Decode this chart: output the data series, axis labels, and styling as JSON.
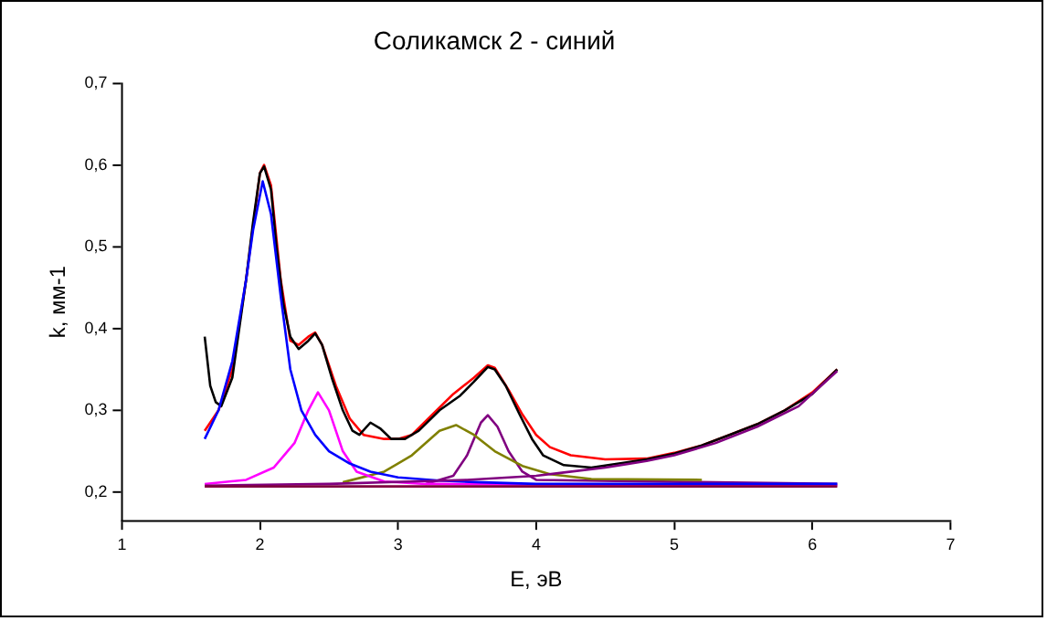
{
  "chart_data": {
    "type": "line",
    "title": "Соликамск 2 - синий",
    "xlabel": "E, эВ",
    "ylabel": "k, мм-1",
    "xlim": [
      1,
      7
    ],
    "xticks": [
      1,
      2,
      3,
      4,
      5,
      6,
      7
    ],
    "ylim": [
      0.165,
      0.7
    ],
    "yticks": [
      {
        "value": 0.2,
        "label": "0,2"
      },
      {
        "value": 0.3,
        "label": "0,3"
      },
      {
        "value": 0.4,
        "label": "0,4"
      },
      {
        "value": 0.5,
        "label": "0,5"
      },
      {
        "value": 0.6,
        "label": "0,6"
      },
      {
        "value": 0.7,
        "label": "0,7"
      }
    ],
    "grid": false,
    "series": [
      {
        "color": "#800040",
        "x": [
          1.6,
          6.18
        ],
        "values": [
          0.207,
          0.207
        ]
      },
      {
        "color": "#800080",
        "x": [
          1.6,
          2.5,
          3.5,
          4.0,
          4.2,
          4.5,
          4.8,
          5.0,
          5.3,
          5.6,
          5.9,
          6.18
        ],
        "values": [
          0.208,
          0.21,
          0.215,
          0.22,
          0.224,
          0.23,
          0.238,
          0.245,
          0.26,
          0.28,
          0.305,
          0.348
        ]
      },
      {
        "color": "#0000ff",
        "x": [
          1.6,
          1.7,
          1.8,
          1.9,
          1.95,
          2.02,
          2.08,
          2.15,
          2.22,
          2.3,
          2.4,
          2.5,
          2.65,
          2.8,
          3.0,
          3.3,
          3.6,
          4.0,
          6.18
        ],
        "values": [
          0.265,
          0.3,
          0.36,
          0.46,
          0.52,
          0.58,
          0.54,
          0.44,
          0.35,
          0.3,
          0.27,
          0.25,
          0.235,
          0.225,
          0.218,
          0.214,
          0.212,
          0.21,
          0.21
        ]
      },
      {
        "color": "#ff00ff",
        "x": [
          1.6,
          1.9,
          2.1,
          2.25,
          2.35,
          2.42,
          2.5,
          2.6,
          2.7,
          2.9,
          3.2,
          6.18
        ],
        "values": [
          0.21,
          0.215,
          0.23,
          0.26,
          0.3,
          0.322,
          0.3,
          0.25,
          0.225,
          0.213,
          0.21,
          0.208
        ]
      },
      {
        "color": "#808000",
        "x": [
          2.6,
          2.9,
          3.1,
          3.3,
          3.42,
          3.55,
          3.7,
          3.9,
          4.1,
          4.4,
          5.2
        ],
        "values": [
          0.212,
          0.225,
          0.245,
          0.275,
          0.282,
          0.27,
          0.25,
          0.232,
          0.222,
          0.216,
          0.215
        ]
      },
      {
        "color": "#800080",
        "x": [
          3.2,
          3.4,
          3.5,
          3.6,
          3.65,
          3.72,
          3.8,
          3.9,
          4.0,
          6.18
        ],
        "values": [
          0.21,
          0.22,
          0.245,
          0.285,
          0.294,
          0.28,
          0.25,
          0.225,
          0.215,
          0.21
        ]
      },
      {
        "color": "#000000",
        "x": [
          1.6,
          1.64,
          1.68,
          1.72,
          1.8,
          1.9,
          1.95,
          2.0,
          2.03,
          2.08,
          2.12,
          2.17,
          2.22,
          2.28,
          2.35,
          2.4,
          2.45,
          2.52,
          2.6,
          2.67,
          2.72,
          2.8,
          2.87,
          2.95,
          3.05,
          3.15,
          3.3,
          3.45,
          3.55,
          3.65,
          3.7,
          3.78,
          3.88,
          3.97,
          4.05,
          4.2,
          4.4,
          4.6,
          4.8,
          5.0,
          5.2,
          5.4,
          5.6,
          5.8,
          6.0,
          6.18
        ],
        "values": [
          0.39,
          0.33,
          0.31,
          0.305,
          0.34,
          0.46,
          0.53,
          0.59,
          0.598,
          0.57,
          0.5,
          0.43,
          0.39,
          0.375,
          0.385,
          0.394,
          0.38,
          0.34,
          0.3,
          0.275,
          0.27,
          0.285,
          0.278,
          0.265,
          0.265,
          0.275,
          0.3,
          0.318,
          0.335,
          0.353,
          0.35,
          0.33,
          0.295,
          0.265,
          0.245,
          0.233,
          0.23,
          0.235,
          0.24,
          0.247,
          0.257,
          0.27,
          0.283,
          0.3,
          0.32,
          0.35
        ]
      },
      {
        "color": "#ff0000",
        "x": [
          1.6,
          1.7,
          1.8,
          1.9,
          2.0,
          2.03,
          2.08,
          2.15,
          2.22,
          2.28,
          2.35,
          2.4,
          2.45,
          2.55,
          2.65,
          2.75,
          2.9,
          3.0,
          3.1,
          3.25,
          3.4,
          3.55,
          3.65,
          3.7,
          3.8,
          3.9,
          4.0,
          4.1,
          4.25,
          4.5,
          4.8,
          5.0,
          5.2,
          5.4,
          5.6,
          5.8,
          6.0,
          6.18
        ],
        "values": [
          0.275,
          0.3,
          0.35,
          0.46,
          0.59,
          0.6,
          0.575,
          0.46,
          0.385,
          0.38,
          0.39,
          0.395,
          0.38,
          0.33,
          0.29,
          0.27,
          0.265,
          0.265,
          0.27,
          0.295,
          0.32,
          0.34,
          0.355,
          0.352,
          0.325,
          0.295,
          0.27,
          0.255,
          0.245,
          0.24,
          0.241,
          0.248,
          0.257,
          0.27,
          0.283,
          0.3,
          0.322,
          0.35
        ]
      }
    ]
  }
}
